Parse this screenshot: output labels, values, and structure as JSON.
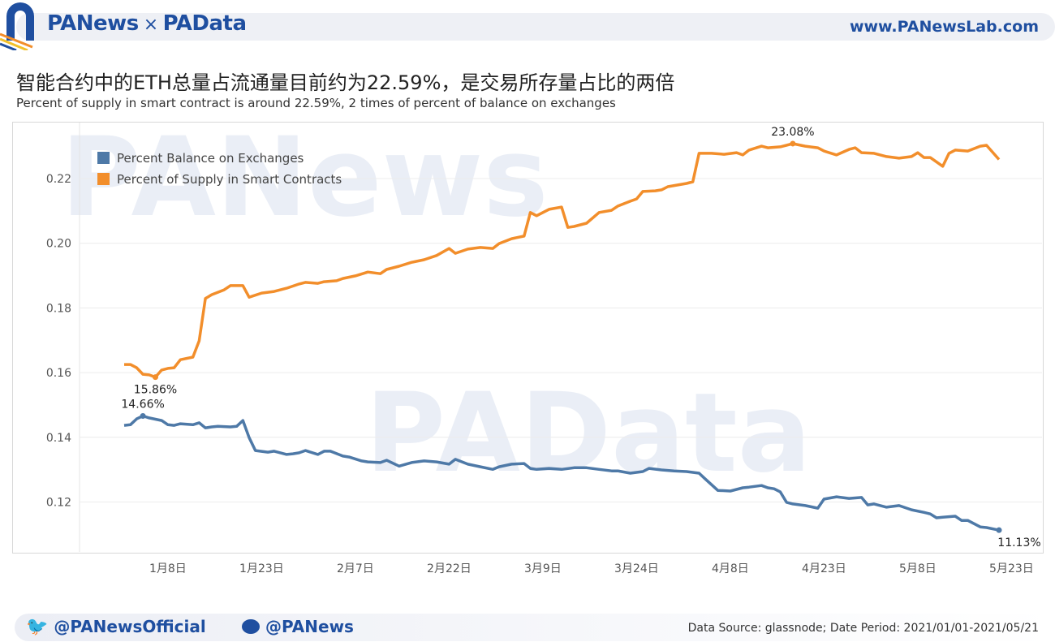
{
  "header": {
    "brand_left": "PANews",
    "brand_sep": "×",
    "brand_right": "PAData",
    "site": "www.PANewsLab.com"
  },
  "title": "智能合约中的ETH总量占流通量目前约为22.59%，是交易所存量占比的两倍",
  "subtitle": "Percent of supply in smart contract is around 22.59%, 2 times of percent of balance on exchanges",
  "footer": {
    "twitter": "@PANewsOfficial",
    "weibo": "@PANews",
    "source": "Data Source: glassnode; Date Period: 2021/01/01-2021/05/21"
  },
  "colors": {
    "brand": "#1f4fa0",
    "blue_series": "#4e79a7",
    "orange_series": "#f28e2b"
  },
  "chart_data": {
    "type": "line",
    "title": "",
    "xlabel": "",
    "ylabel": "",
    "ylim": [
      0.105,
      0.238
    ],
    "xlim": [
      "2020-12-25",
      "2021-05-28"
    ],
    "yticks": [
      "0.12",
      "0.14",
      "0.16",
      "0.18",
      "0.20",
      "0.22"
    ],
    "ytick_values": [
      0.12,
      0.14,
      0.16,
      0.18,
      0.2,
      0.22
    ],
    "xticks": [
      {
        "date": "2021-01-08",
        "label": "1月8日"
      },
      {
        "date": "2021-01-23",
        "label": "1月23日"
      },
      {
        "date": "2021-02-07",
        "label": "2月7日"
      },
      {
        "date": "2021-02-22",
        "label": "2月22日"
      },
      {
        "date": "2021-03-09",
        "label": "3月9日"
      },
      {
        "date": "2021-03-24",
        "label": "3月24日"
      },
      {
        "date": "2021-04-08",
        "label": "4月8日"
      },
      {
        "date": "2021-04-23",
        "label": "4月23日"
      },
      {
        "date": "2021-05-08",
        "label": "5月8日"
      },
      {
        "date": "2021-05-23",
        "label": "5月23日"
      }
    ],
    "grid": true,
    "legend": "top-left",
    "series": [
      {
        "name": "Percent Balance on Exchanges",
        "color": "#4e79a7",
        "points": [
          [
            "2021-01-01",
            0.1437
          ],
          [
            "2021-01-02",
            0.1439
          ],
          [
            "2021-01-03",
            0.1457
          ],
          [
            "2021-01-04",
            0.1466
          ],
          [
            "2021-01-05",
            0.146
          ],
          [
            "2021-01-07",
            0.1452
          ],
          [
            "2021-01-08",
            0.1439
          ],
          [
            "2021-01-09",
            0.1437
          ],
          [
            "2021-01-10",
            0.1442
          ],
          [
            "2021-01-12",
            0.1439
          ],
          [
            "2021-01-13",
            0.1445
          ],
          [
            "2021-01-14",
            0.1429
          ],
          [
            "2021-01-15",
            0.1432
          ],
          [
            "2021-01-16",
            0.1434
          ],
          [
            "2021-01-18",
            0.1432
          ],
          [
            "2021-01-19",
            0.1434
          ],
          [
            "2021-01-20",
            0.1452
          ],
          [
            "2021-01-21",
            0.1399
          ],
          [
            "2021-01-22",
            0.1359
          ],
          [
            "2021-01-24",
            0.1354
          ],
          [
            "2021-01-25",
            0.1357
          ],
          [
            "2021-01-27",
            0.1347
          ],
          [
            "2021-01-28",
            0.1349
          ],
          [
            "2021-01-29",
            0.1352
          ],
          [
            "2021-01-30",
            0.1359
          ],
          [
            "2021-02-01",
            0.1347
          ],
          [
            "2021-02-02",
            0.1357
          ],
          [
            "2021-02-03",
            0.1357
          ],
          [
            "2021-02-05",
            0.1342
          ],
          [
            "2021-02-06",
            0.1339
          ],
          [
            "2021-02-08",
            0.1327
          ],
          [
            "2021-02-09",
            0.1324
          ],
          [
            "2021-02-11",
            0.1322
          ],
          [
            "2021-02-12",
            0.1329
          ],
          [
            "2021-02-14",
            0.1311
          ],
          [
            "2021-02-16",
            0.1322
          ],
          [
            "2021-02-18",
            0.1327
          ],
          [
            "2021-02-20",
            0.1324
          ],
          [
            "2021-02-22",
            0.1317
          ],
          [
            "2021-02-23",
            0.1332
          ],
          [
            "2021-02-25",
            0.1317
          ],
          [
            "2021-02-27",
            0.1309
          ],
          [
            "2021-03-01",
            0.1301
          ],
          [
            "2021-03-02",
            0.1309
          ],
          [
            "2021-03-04",
            0.1317
          ],
          [
            "2021-03-06",
            0.1319
          ],
          [
            "2021-03-07",
            0.1304
          ],
          [
            "2021-03-08",
            0.1301
          ],
          [
            "2021-03-10",
            0.1304
          ],
          [
            "2021-03-12",
            0.1301
          ],
          [
            "2021-03-14",
            0.1306
          ],
          [
            "2021-03-16",
            0.1306
          ],
          [
            "2021-03-18",
            0.1301
          ],
          [
            "2021-03-20",
            0.1296
          ],
          [
            "2021-03-21",
            0.1296
          ],
          [
            "2021-03-23",
            0.1289
          ],
          [
            "2021-03-25",
            0.1294
          ],
          [
            "2021-03-26",
            0.1304
          ],
          [
            "2021-03-28",
            0.1299
          ],
          [
            "2021-03-30",
            0.1296
          ],
          [
            "2021-04-01",
            0.1294
          ],
          [
            "2021-04-03",
            0.1289
          ],
          [
            "2021-04-04",
            0.1271
          ],
          [
            "2021-04-06",
            0.1236
          ],
          [
            "2021-04-08",
            0.1234
          ],
          [
            "2021-04-10",
            0.1244
          ],
          [
            "2021-04-11",
            0.1246
          ],
          [
            "2021-04-13",
            0.1251
          ],
          [
            "2021-04-14",
            0.1244
          ],
          [
            "2021-04-15",
            0.1241
          ],
          [
            "2021-04-16",
            0.1231
          ],
          [
            "2021-04-17",
            0.1199
          ],
          [
            "2021-04-18",
            0.1194
          ],
          [
            "2021-04-20",
            0.1189
          ],
          [
            "2021-04-22",
            0.1181
          ],
          [
            "2021-04-23",
            0.1209
          ],
          [
            "2021-04-25",
            0.1216
          ],
          [
            "2021-04-27",
            0.1211
          ],
          [
            "2021-04-29",
            0.1214
          ],
          [
            "2021-04-30",
            0.1191
          ],
          [
            "2021-05-01",
            0.1194
          ],
          [
            "2021-05-03",
            0.1184
          ],
          [
            "2021-05-05",
            0.1189
          ],
          [
            "2021-05-07",
            0.1176
          ],
          [
            "2021-05-09",
            0.1168
          ],
          [
            "2021-05-10",
            0.1163
          ],
          [
            "2021-05-11",
            0.1151
          ],
          [
            "2021-05-12",
            0.1153
          ],
          [
            "2021-05-14",
            0.1156
          ],
          [
            "2021-05-15",
            0.1143
          ],
          [
            "2021-05-16",
            0.1143
          ],
          [
            "2021-05-18",
            0.1123
          ],
          [
            "2021-05-19",
            0.1121
          ],
          [
            "2021-05-21",
            0.1113
          ]
        ]
      },
      {
        "name": "Percent of Supply in Smart Contracts",
        "color": "#f28e2b",
        "points": [
          [
            "2021-01-01",
            0.1625
          ],
          [
            "2021-01-02",
            0.1625
          ],
          [
            "2021-01-03",
            0.1615
          ],
          [
            "2021-01-04",
            0.1595
          ],
          [
            "2021-01-05",
            0.1593
          ],
          [
            "2021-01-06",
            0.1586
          ],
          [
            "2021-01-07",
            0.1608
          ],
          [
            "2021-01-08",
            0.1613
          ],
          [
            "2021-01-09",
            0.1615
          ],
          [
            "2021-01-10",
            0.164
          ],
          [
            "2021-01-12",
            0.1648
          ],
          [
            "2021-01-13",
            0.1698
          ],
          [
            "2021-01-14",
            0.1829
          ],
          [
            "2021-01-15",
            0.1841
          ],
          [
            "2021-01-17",
            0.1856
          ],
          [
            "2021-01-18",
            0.1869
          ],
          [
            "2021-01-20",
            0.1869
          ],
          [
            "2021-01-21",
            0.1833
          ],
          [
            "2021-01-23",
            0.1846
          ],
          [
            "2021-01-25",
            0.1851
          ],
          [
            "2021-01-26",
            0.1856
          ],
          [
            "2021-01-27",
            0.1861
          ],
          [
            "2021-01-29",
            0.1874
          ],
          [
            "2021-01-30",
            0.1879
          ],
          [
            "2021-02-01",
            0.1876
          ],
          [
            "2021-02-02",
            0.1881
          ],
          [
            "2021-02-04",
            0.1884
          ],
          [
            "2021-02-05",
            0.1891
          ],
          [
            "2021-02-07",
            0.1899
          ],
          [
            "2021-02-09",
            0.1911
          ],
          [
            "2021-02-11",
            0.1906
          ],
          [
            "2021-02-12",
            0.1919
          ],
          [
            "2021-02-14",
            0.1929
          ],
          [
            "2021-02-16",
            0.1941
          ],
          [
            "2021-02-18",
            0.1949
          ],
          [
            "2021-02-20",
            0.1962
          ],
          [
            "2021-02-22",
            0.1984
          ],
          [
            "2021-02-23",
            0.1969
          ],
          [
            "2021-02-25",
            0.1982
          ],
          [
            "2021-02-27",
            0.1987
          ],
          [
            "2021-03-01",
            0.1984
          ],
          [
            "2021-03-02",
            0.1999
          ],
          [
            "2021-03-04",
            0.2014
          ],
          [
            "2021-03-06",
            0.2022
          ],
          [
            "2021-03-07",
            0.2095
          ],
          [
            "2021-03-08",
            0.2085
          ],
          [
            "2021-03-10",
            0.2105
          ],
          [
            "2021-03-12",
            0.2112
          ],
          [
            "2021-03-13",
            0.2049
          ],
          [
            "2021-03-14",
            0.2052
          ],
          [
            "2021-03-16",
            0.2062
          ],
          [
            "2021-03-18",
            0.2095
          ],
          [
            "2021-03-20",
            0.2102
          ],
          [
            "2021-03-21",
            0.2115
          ],
          [
            "2021-03-23",
            0.213
          ],
          [
            "2021-03-24",
            0.2137
          ],
          [
            "2021-03-25",
            0.216
          ],
          [
            "2021-03-27",
            0.2162
          ],
          [
            "2021-03-28",
            0.2165
          ],
          [
            "2021-03-29",
            0.2175
          ],
          [
            "2021-04-01",
            0.2185
          ],
          [
            "2021-04-02",
            0.219
          ],
          [
            "2021-04-03",
            0.2278
          ],
          [
            "2021-04-05",
            0.2278
          ],
          [
            "2021-04-07",
            0.2275
          ],
          [
            "2021-04-09",
            0.228
          ],
          [
            "2021-04-10",
            0.2273
          ],
          [
            "2021-04-11",
            0.2288
          ],
          [
            "2021-04-13",
            0.23
          ],
          [
            "2021-04-14",
            0.2295
          ],
          [
            "2021-04-16",
            0.2298
          ],
          [
            "2021-04-18",
            0.2308
          ],
          [
            "2021-04-20",
            0.23
          ],
          [
            "2021-04-22",
            0.2295
          ],
          [
            "2021-04-23",
            0.2285
          ],
          [
            "2021-04-25",
            0.2273
          ],
          [
            "2021-04-27",
            0.229
          ],
          [
            "2021-04-28",
            0.2295
          ],
          [
            "2021-04-29",
            0.228
          ],
          [
            "2021-05-01",
            0.2278
          ],
          [
            "2021-05-03",
            0.2268
          ],
          [
            "2021-05-05",
            0.2263
          ],
          [
            "2021-05-07",
            0.2268
          ],
          [
            "2021-05-08",
            0.228
          ],
          [
            "2021-05-09",
            0.2265
          ],
          [
            "2021-05-10",
            0.2265
          ],
          [
            "2021-05-12",
            0.2238
          ],
          [
            "2021-05-13",
            0.2278
          ],
          [
            "2021-05-14",
            0.2288
          ],
          [
            "2021-05-16",
            0.2285
          ],
          [
            "2021-05-18",
            0.23
          ],
          [
            "2021-05-19",
            0.2303
          ],
          [
            "2021-05-21",
            0.2259
          ]
        ]
      }
    ],
    "annotations": [
      {
        "series": 1,
        "date": "2021-01-06",
        "value": 0.1586,
        "label": "15.86%",
        "pos": "below"
      },
      {
        "series": 0,
        "date": "2021-01-04",
        "value": 0.1466,
        "label": "14.66%",
        "pos": "above"
      },
      {
        "series": 1,
        "date": "2021-04-18",
        "value": 0.2308,
        "label": "23.08%",
        "pos": "above"
      },
      {
        "series": 0,
        "date": "2021-05-21",
        "value": 0.1113,
        "label": "11.13%",
        "pos": "below"
      }
    ]
  }
}
